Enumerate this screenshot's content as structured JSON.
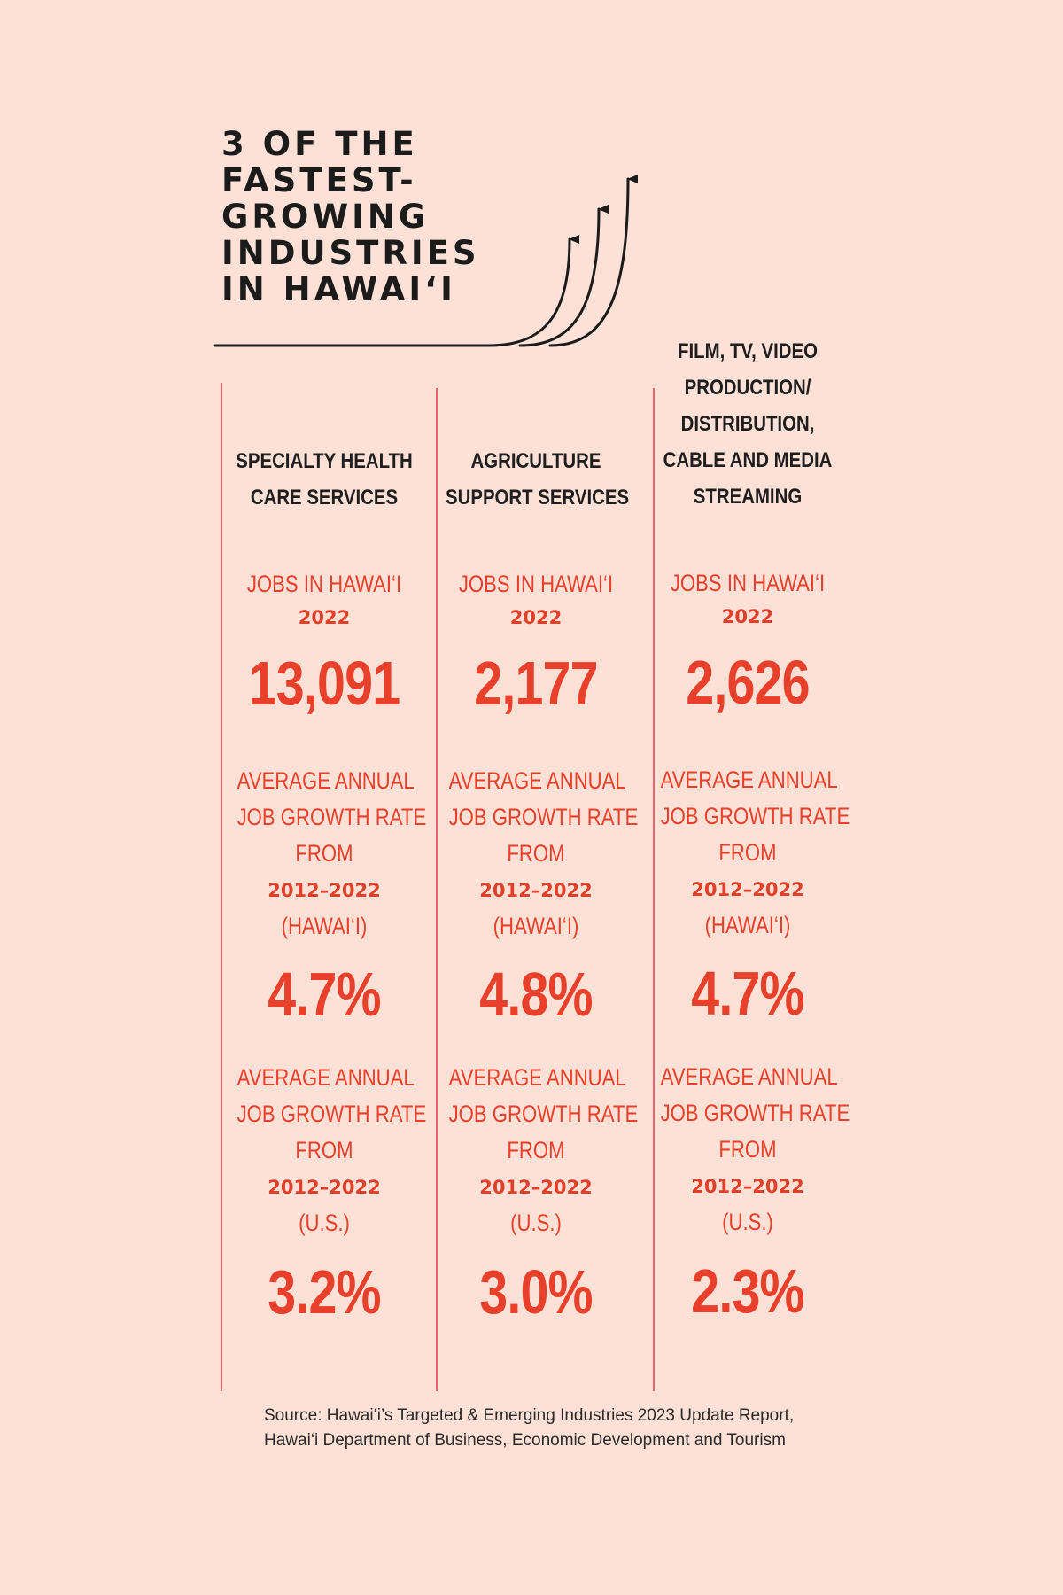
{
  "chart_data": {
    "type": "table",
    "title": [
      "3 OF THE",
      "FASTEST-",
      "GROWING",
      "INDUSTRIES",
      "IN HAWAI‘I"
    ],
    "row_labels": {
      "jobs": [
        "JOBS IN HAWAI‘I"
      ],
      "jobs_year": "2022",
      "growth": [
        "AVERAGE ANNUAL",
        "JOB GROWTH RATE",
        "FROM"
      ],
      "growth_years": "2012–2022",
      "hawaii_scope": "(HAWAI‘I)",
      "us_scope": "(U.S.)"
    },
    "industries": [
      {
        "name": [
          "SPECIALTY HEALTH",
          "CARE SERVICES"
        ],
        "jobs_2022": "13,091",
        "growth_hawaii": "4.7%",
        "growth_us": "3.2%"
      },
      {
        "name": [
          "AGRICULTURE",
          "SUPPORT SERVICES"
        ],
        "jobs_2022": "2,177",
        "growth_hawaii": "4.8%",
        "growth_us": "3.0%"
      },
      {
        "name": [
          "FILM, TV, VIDEO",
          "PRODUCTION/",
          "DISTRIBUTION,",
          "CABLE AND MEDIA",
          "STREAMING"
        ],
        "jobs_2022": "2,626",
        "growth_hawaii": "4.7%",
        "growth_us": "2.3%"
      }
    ],
    "source": "Source: Hawai‘i’s Targeted & Emerging Industries 2023 Update Report, Hawai‘i Department of Business, Economic Development and Tourism"
  },
  "colors": {
    "background": "#fde0d6",
    "accent": "#e8402a",
    "divider": "#e8646a",
    "text": "#1b1b1b"
  }
}
